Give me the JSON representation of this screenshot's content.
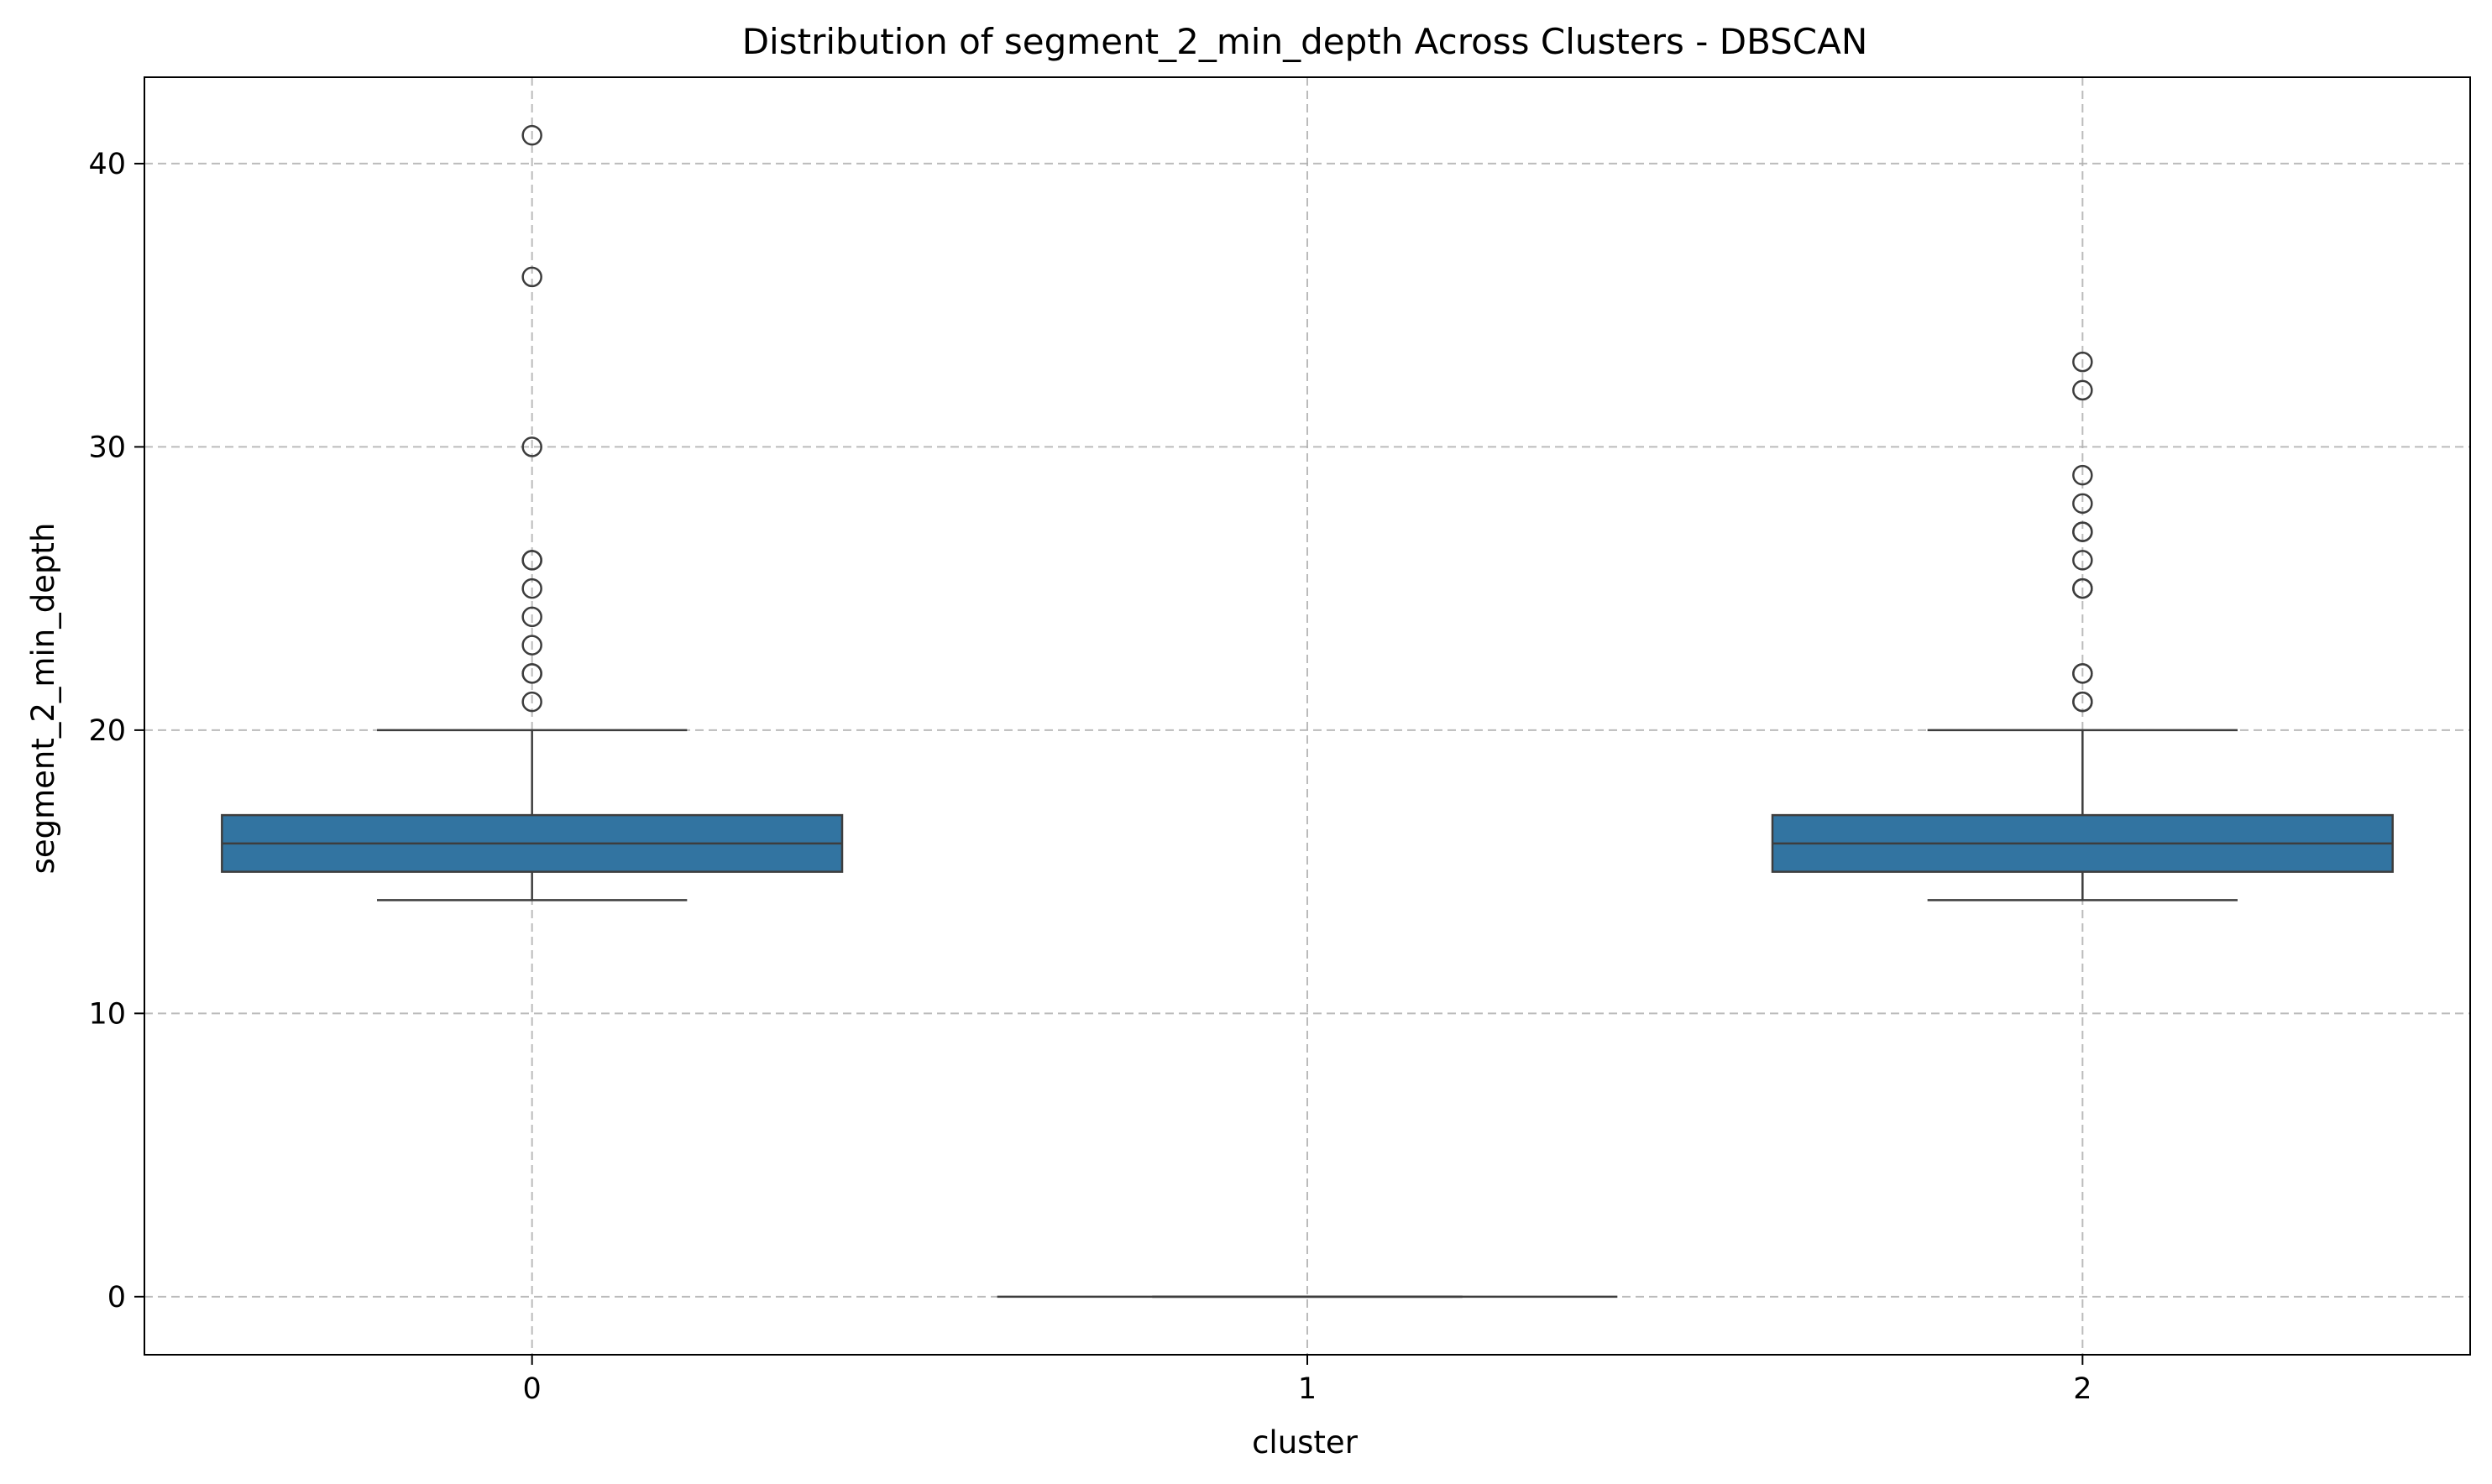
{
  "chart_data": {
    "type": "box",
    "title": "Distribution of segment_2_min_depth Across Clusters - DBSCAN",
    "xlabel": "cluster",
    "ylabel": "segment_2_min_depth",
    "categories": [
      "0",
      "1",
      "2"
    ],
    "ylim": [
      -2.05,
      43.05
    ],
    "yticks": [
      0,
      10,
      20,
      30,
      40
    ],
    "grid": true,
    "box_color": "#3274a1",
    "boxes": [
      {
        "category": "0",
        "whisker_low": 14,
        "q1": 15,
        "median": 16,
        "q3": 17,
        "whisker_high": 20,
        "outliers": [
          21,
          22,
          22,
          23,
          24,
          25,
          26,
          26,
          30,
          36,
          41
        ]
      },
      {
        "category": "1",
        "whisker_low": 0,
        "q1": 0,
        "median": 0,
        "q3": 0,
        "whisker_high": 0,
        "outliers": []
      },
      {
        "category": "2",
        "whisker_low": 14,
        "q1": 15,
        "median": 16,
        "q3": 17,
        "whisker_high": 20,
        "outliers": [
          21,
          21,
          22,
          22,
          25,
          25,
          26,
          27,
          27,
          28,
          29,
          32,
          33
        ]
      }
    ]
  }
}
